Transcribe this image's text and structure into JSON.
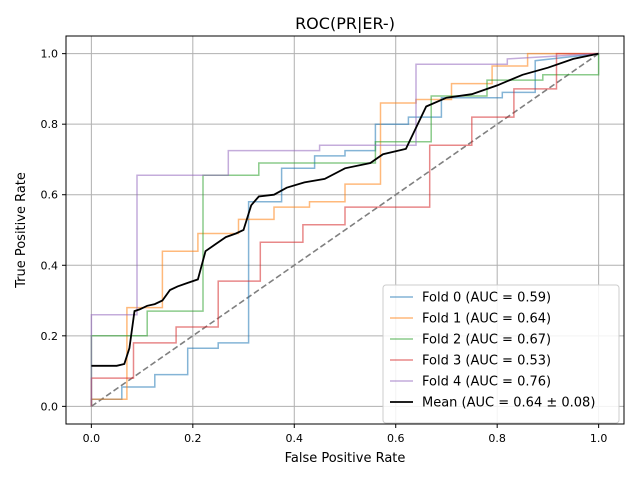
{
  "chart_data": {
    "type": "line",
    "title": "ROC(PR|ER-)",
    "xlabel": "False Positive Rate",
    "ylabel": "True Positive Rate",
    "xlim": [
      -0.05,
      1.05
    ],
    "ylim": [
      -0.05,
      1.05
    ],
    "xticks": [
      0.0,
      0.2,
      0.4,
      0.6,
      0.8,
      1.0
    ],
    "xtick_labels": [
      "0.0",
      "0.2",
      "0.4",
      "0.6",
      "0.8",
      "1.0"
    ],
    "yticks": [
      0.0,
      0.2,
      0.4,
      0.6,
      0.8,
      1.0
    ],
    "ytick_labels": [
      "0.0",
      "0.2",
      "0.4",
      "0.6",
      "0.8",
      "1.0"
    ],
    "grid": true,
    "legend_position": "lower right",
    "series": [
      {
        "name": "Fold 0 (AUC = 0.59)",
        "color": "#1f77b4",
        "style": "step",
        "x": [
          0,
          0,
          0.06,
          0.06,
          0.125,
          0.125,
          0.19,
          0.19,
          0.25,
          0.25,
          0.31,
          0.31,
          0.375,
          0.375,
          0.44,
          0.44,
          0.5,
          0.5,
          0.56,
          0.56,
          0.625,
          0.625,
          0.69,
          0.69,
          0.81,
          0.81,
          0.875,
          0.875,
          1.0
        ],
        "y": [
          0,
          0.02,
          0.02,
          0.055,
          0.055,
          0.09,
          0.09,
          0.165,
          0.165,
          0.18,
          0.18,
          0.58,
          0.58,
          0.675,
          0.675,
          0.71,
          0.71,
          0.725,
          0.725,
          0.8,
          0.8,
          0.82,
          0.82,
          0.875,
          0.875,
          0.89,
          0.89,
          0.98,
          1.0
        ]
      },
      {
        "name": "Fold 1 (AUC = 0.64)",
        "color": "#ff7f0e",
        "style": "step",
        "x": [
          0,
          0,
          0.07,
          0.07,
          0.14,
          0.14,
          0.21,
          0.21,
          0.29,
          0.29,
          0.36,
          0.36,
          0.43,
          0.43,
          0.5,
          0.5,
          0.57,
          0.57,
          0.64,
          0.64,
          0.71,
          0.71,
          0.79,
          0.79,
          0.86,
          0.86,
          1.0
        ],
        "y": [
          0,
          0.02,
          0.02,
          0.28,
          0.28,
          0.44,
          0.44,
          0.49,
          0.49,
          0.53,
          0.53,
          0.565,
          0.565,
          0.58,
          0.58,
          0.63,
          0.63,
          0.86,
          0.86,
          0.87,
          0.87,
          0.915,
          0.915,
          0.965,
          0.965,
          1.0,
          1.0
        ]
      },
      {
        "name": "Fold 2 (AUC = 0.67)",
        "color": "#2ca02c",
        "style": "step",
        "x": [
          0,
          0,
          0.11,
          0.11,
          0.22,
          0.22,
          0.33,
          0.33,
          0.56,
          0.56,
          0.67,
          0.67,
          0.78,
          0.78,
          0.89,
          0.89,
          1.0,
          1.0
        ],
        "y": [
          0,
          0.2,
          0.2,
          0.27,
          0.27,
          0.655,
          0.655,
          0.69,
          0.69,
          0.75,
          0.75,
          0.88,
          0.88,
          0.925,
          0.925,
          0.94,
          0.94,
          1.0
        ]
      },
      {
        "name": "Fold 3 (AUC = 0.53)",
        "color": "#d62728",
        "style": "step",
        "x": [
          0,
          0,
          0.083,
          0.083,
          0.167,
          0.167,
          0.25,
          0.25,
          0.333,
          0.333,
          0.417,
          0.417,
          0.5,
          0.5,
          0.667,
          0.667,
          0.75,
          0.75,
          0.833,
          0.833,
          0.917,
          0.917,
          1.0
        ],
        "y": [
          0,
          0.08,
          0.08,
          0.18,
          0.18,
          0.225,
          0.225,
          0.355,
          0.355,
          0.465,
          0.465,
          0.515,
          0.515,
          0.565,
          0.565,
          0.74,
          0.74,
          0.82,
          0.82,
          0.9,
          0.9,
          1.0,
          1.0
        ]
      },
      {
        "name": "Fold 4 (AUC = 0.76)",
        "color": "#9467bd",
        "style": "step",
        "x": [
          0,
          0,
          0.09,
          0.09,
          0.27,
          0.27,
          0.45,
          0.45,
          0.64,
          0.64,
          0.82,
          0.82,
          1.0
        ],
        "y": [
          0,
          0.26,
          0.26,
          0.655,
          0.655,
          0.725,
          0.725,
          0.74,
          0.74,
          0.97,
          0.97,
          0.985,
          1.0
        ]
      },
      {
        "name": "Mean (AUC = 0.64 ± 0.08)",
        "color": "#000000",
        "style": "line",
        "x": [
          0.0,
          0.05,
          0.065,
          0.075,
          0.085,
          0.095,
          0.11,
          0.125,
          0.14,
          0.155,
          0.17,
          0.19,
          0.21,
          0.225,
          0.245,
          0.265,
          0.285,
          0.3,
          0.315,
          0.33,
          0.36,
          0.385,
          0.42,
          0.46,
          0.5,
          0.55,
          0.575,
          0.62,
          0.66,
          0.7,
          0.75,
          0.8,
          0.85,
          0.9,
          0.95,
          1.0
        ],
        "y": [
          0.115,
          0.115,
          0.12,
          0.165,
          0.27,
          0.275,
          0.285,
          0.29,
          0.3,
          0.33,
          0.34,
          0.35,
          0.36,
          0.44,
          0.46,
          0.48,
          0.49,
          0.5,
          0.57,
          0.595,
          0.6,
          0.62,
          0.635,
          0.645,
          0.675,
          0.69,
          0.715,
          0.73,
          0.85,
          0.875,
          0.885,
          0.91,
          0.94,
          0.96,
          0.985,
          1.0
        ]
      }
    ],
    "reference_line": {
      "x": [
        0,
        1
      ],
      "y": [
        0,
        1
      ],
      "color": "#808080",
      "style": "dashed"
    }
  }
}
